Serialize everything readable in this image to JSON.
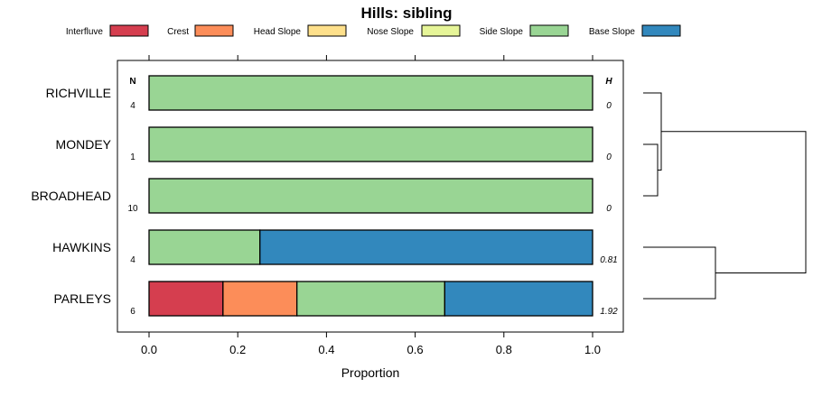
{
  "chart_data": {
    "type": "bar",
    "orientation": "horizontal",
    "stacked": true,
    "title": "Hills: sibling",
    "xlabel": "Proportion",
    "ylabel": "",
    "xlim": [
      0,
      1
    ],
    "x_ticks": [
      "0.0",
      "0.2",
      "0.4",
      "0.6",
      "0.8",
      "1.0"
    ],
    "legend_position": "top",
    "n_header": "N",
    "h_header": "H",
    "categories": [
      "RICHVILLE",
      "MONDEY",
      "BROADHEAD",
      "HAWKINS",
      "PARLEYS"
    ],
    "n_values": [
      "4",
      "1",
      "10",
      "4",
      "6"
    ],
    "h_values": [
      "0",
      "0",
      "0",
      "0.81",
      "1.92"
    ],
    "series": [
      {
        "name": "Interfluve",
        "color": "#d53e4f",
        "values": [
          0,
          0,
          0,
          0,
          0.1667
        ]
      },
      {
        "name": "Crest",
        "color": "#fc8d59",
        "values": [
          0,
          0,
          0,
          0,
          0.1667
        ]
      },
      {
        "name": "Head Slope",
        "color": "#fee08b",
        "values": [
          0,
          0,
          0,
          0,
          0
        ]
      },
      {
        "name": "Nose Slope",
        "color": "#e6f598",
        "values": [
          0,
          0,
          0,
          0,
          0
        ]
      },
      {
        "name": "Side Slope",
        "color": "#99d594",
        "values": [
          1,
          1,
          1,
          0.25,
          0.3333
        ]
      },
      {
        "name": "Base Slope",
        "color": "#3288bd",
        "values": [
          0,
          0,
          0,
          0.75,
          0.3333
        ]
      }
    ],
    "dendrogram": {
      "leaves": [
        "RICHVILLE",
        "MONDEY",
        "BROADHEAD",
        "HAWKINS",
        "PARLEYS"
      ],
      "merges": [
        {
          "a": "MONDEY",
          "b": "BROADHEAD",
          "height": 0.04
        },
        {
          "a": "RICHVILLE",
          "b": "MONDEY+BROADHEAD",
          "height": 0.05
        },
        {
          "a": "HAWKINS",
          "b": "PARLEYS",
          "height": 0.2
        },
        {
          "a": "RICHVILLE+MONDEY+BROADHEAD",
          "b": "HAWKINS+PARLEYS",
          "height": 0.45
        }
      ]
    }
  }
}
